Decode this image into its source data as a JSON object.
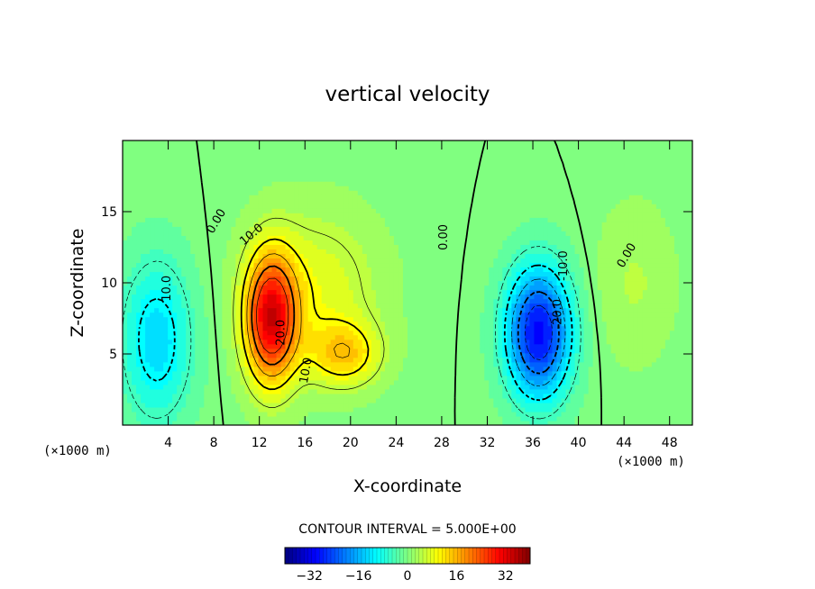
{
  "chart_data": {
    "type": "heatmap",
    "title": "vertical velocity",
    "xlabel": "X-coordinate",
    "ylabel": "Z-coordinate",
    "x_unit": "(×1000 m)",
    "y_unit": "(×1000 m)",
    "xlim": [
      0,
      50
    ],
    "ylim": [
      0,
      20
    ],
    "x_ticks": [
      4,
      8,
      12,
      16,
      20,
      24,
      28,
      32,
      36,
      40,
      44,
      48
    ],
    "y_ticks": [
      5,
      10,
      15
    ],
    "contour_interval_label": "CONTOUR INTERVAL = 5.000E+00",
    "colorbar": {
      "range": [
        -40,
        40
      ],
      "ticks": [
        -32,
        -16,
        0,
        16,
        32
      ]
    },
    "features": [
      {
        "x": 13,
        "z": 7.5,
        "value": 30,
        "sx": 1.6,
        "sz": 3.2,
        "sign": "updraft"
      },
      {
        "x": 19.5,
        "z": 5,
        "value": 12,
        "sx": 2.2,
        "sz": 1.6,
        "sign": "updraft"
      },
      {
        "x": 17,
        "z": 9.5,
        "value": 8,
        "sx": 4,
        "sz": 4,
        "sign": "updraft"
      },
      {
        "x": 36.5,
        "z": 6.5,
        "value": -30,
        "sx": 2,
        "sz": 3.2,
        "sign": "downdraft"
      },
      {
        "x": 3,
        "z": 6,
        "value": -13,
        "sx": 2.2,
        "sz": 4,
        "sign": "downdraft"
      },
      {
        "x": 45,
        "z": 10,
        "value": 4,
        "sx": 2.5,
        "sz": 4,
        "sign": "updraft"
      }
    ],
    "contour_labels": [
      {
        "text": "0.00",
        "x": 8.5,
        "z": 14.2,
        "angle": -60
      },
      {
        "text": "10.0",
        "x": 11.5,
        "z": 13.2,
        "angle": -40
      },
      {
        "text": "20.0",
        "x": 14.2,
        "z": 6.5,
        "angle": -90
      },
      {
        "text": "10.0",
        "x": 16.4,
        "z": 3.8,
        "angle": -80
      },
      {
        "text": "10.0",
        "x": 4.2,
        "z": 9.6,
        "angle": -90
      },
      {
        "text": "0.00",
        "x": 28.5,
        "z": 13.2,
        "angle": -90
      },
      {
        "text": "-10.0",
        "x": 39,
        "z": 11.2,
        "angle": -90
      },
      {
        "text": "-20.0",
        "x": 38.5,
        "z": 7.8,
        "angle": -90
      },
      {
        "text": "0.00",
        "x": 44.5,
        "z": 11.8,
        "angle": -60
      }
    ]
  }
}
